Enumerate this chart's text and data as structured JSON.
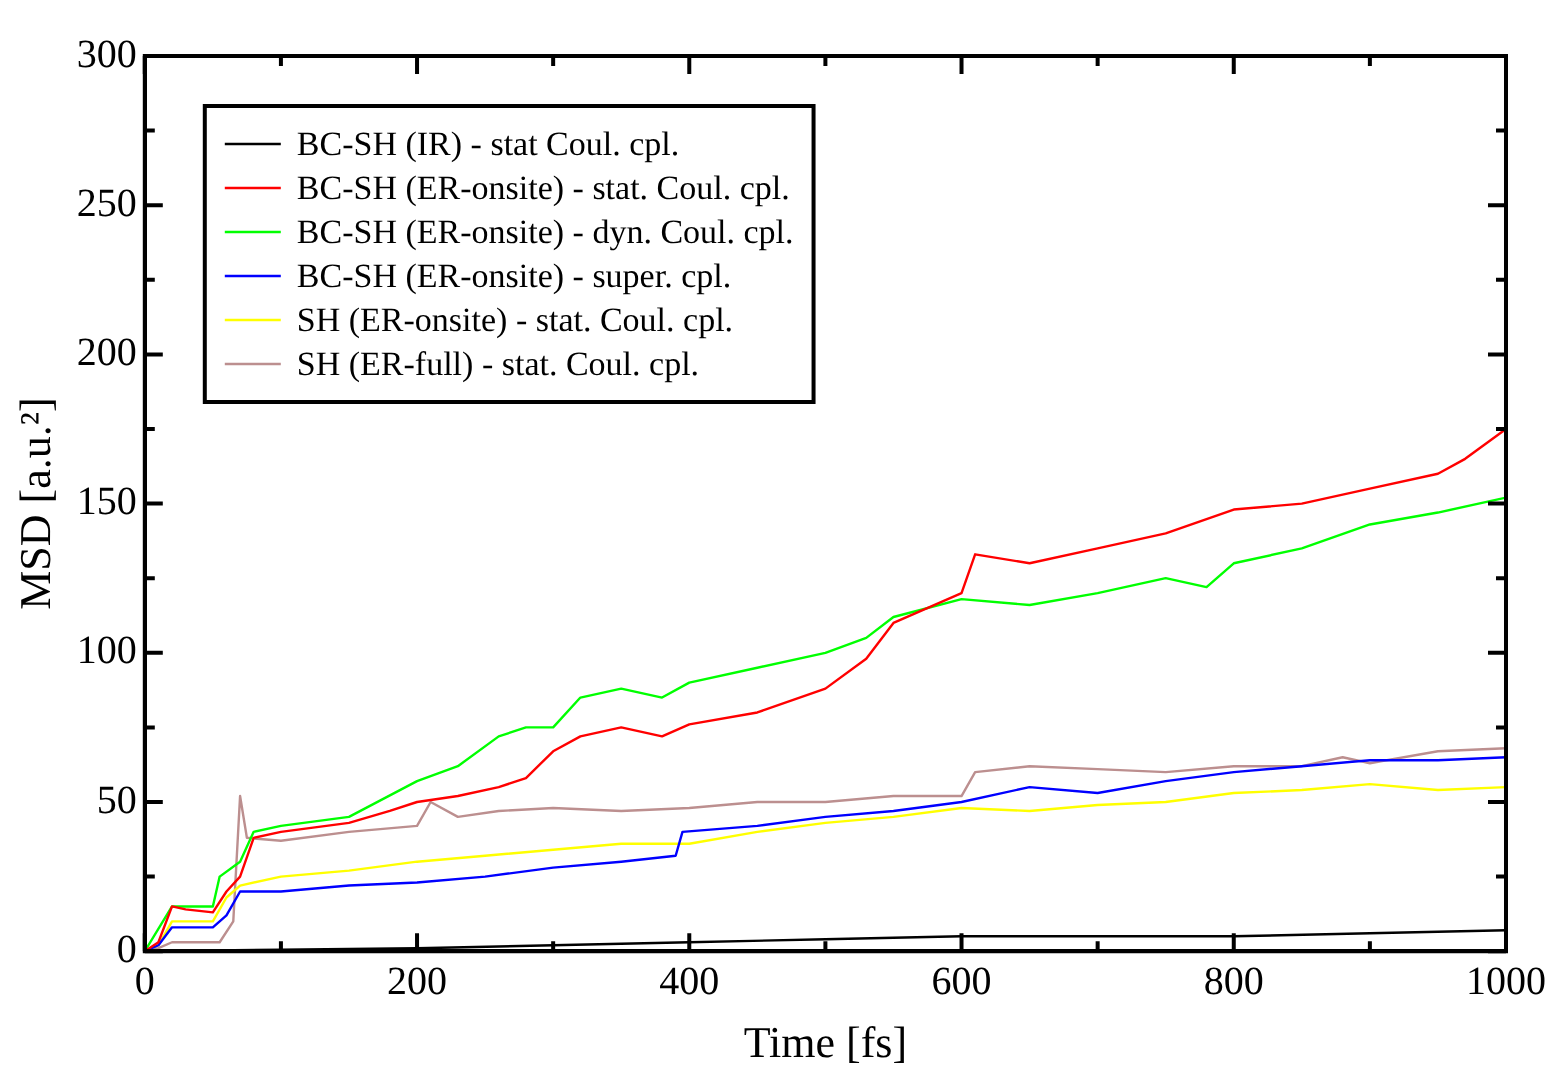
{
  "chart_data": {
    "type": "line",
    "xlabel": "Time [fs]",
    "ylabel": "MSD [a.u.²]",
    "xlim": [
      0,
      1000
    ],
    "ylim": [
      0,
      300
    ],
    "xticks": [
      0,
      {
        "value": 100,
        "label": null
      },
      200,
      {
        "value": 300,
        "label": null
      },
      400,
      {
        "value": 500,
        "label": null
      },
      600,
      {
        "value": 700,
        "label": null
      },
      800,
      {
        "value": 900,
        "label": null
      },
      1000
    ],
    "yticks": [
      0,
      {
        "value": 25,
        "label": null
      },
      50,
      {
        "value": 75,
        "label": null
      },
      100,
      {
        "value": 125,
        "label": null
      },
      150,
      {
        "value": 175,
        "label": null
      },
      200,
      {
        "value": 225,
        "label": null
      },
      250,
      {
        "value": 275,
        "label": null
      },
      300
    ],
    "grid": false,
    "legend": "top left",
    "marker": "none",
    "line_style": "solid",
    "series": [
      {
        "name": "BC-SH (IR) - stat Coul. cpl.",
        "color": "#000000",
        "x": [
          0,
          100,
          200,
          300,
          400,
          500,
          600,
          700,
          800,
          900,
          1000
        ],
        "values": [
          0,
          0.5,
          1,
          2,
          3,
          4,
          5,
          5,
          5,
          6,
          7
        ]
      },
      {
        "name": "BC-SH (ER-onsite) - stat. Coul. cpl.",
        "color": "#ff0000",
        "x": [
          0,
          10,
          20,
          30,
          50,
          60,
          70,
          80,
          100,
          150,
          180,
          200,
          230,
          260,
          280,
          300,
          320,
          350,
          380,
          400,
          450,
          500,
          530,
          550,
          600,
          610,
          650,
          700,
          750,
          800,
          850,
          900,
          950,
          970,
          1000
        ],
        "values": [
          0,
          3,
          15,
          14,
          13,
          20,
          25,
          38,
          40,
          43,
          47,
          50,
          52,
          55,
          58,
          67,
          72,
          75,
          72,
          76,
          80,
          88,
          98,
          110,
          120,
          133,
          130,
          135,
          140,
          148,
          150,
          155,
          160,
          165,
          175
        ]
      },
      {
        "name": "BC-SH (ER-onsite) - dyn. Coul. cpl.",
        "color": "#00ff00",
        "x": [
          0,
          20,
          50,
          55,
          70,
          80,
          100,
          150,
          200,
          230,
          260,
          280,
          300,
          320,
          350,
          380,
          400,
          450,
          500,
          530,
          550,
          600,
          650,
          700,
          750,
          780,
          800,
          850,
          900,
          950,
          1000
        ],
        "values": [
          0,
          15,
          15,
          25,
          30,
          40,
          42,
          45,
          57,
          62,
          72,
          75,
          75,
          85,
          88,
          85,
          90,
          95,
          100,
          105,
          112,
          118,
          116,
          120,
          125,
          122,
          130,
          135,
          143,
          147,
          152
        ]
      },
      {
        "name": "BC-SH (ER-onsite) - super. cpl.",
        "color": "#0000ff",
        "x": [
          0,
          10,
          20,
          50,
          60,
          70,
          100,
          150,
          200,
          250,
          300,
          350,
          390,
          395,
          450,
          500,
          550,
          600,
          650,
          700,
          750,
          800,
          850,
          900,
          950,
          1000
        ],
        "values": [
          0,
          2,
          8,
          8,
          12,
          20,
          20,
          22,
          23,
          25,
          28,
          30,
          32,
          40,
          42,
          45,
          47,
          50,
          55,
          53,
          57,
          60,
          62,
          64,
          64,
          65
        ]
      },
      {
        "name": "SH (ER-onsite) - stat. Coul. cpl.",
        "color": "#ffff00",
        "x": [
          0,
          10,
          20,
          50,
          60,
          70,
          100,
          150,
          200,
          250,
          300,
          350,
          400,
          450,
          500,
          550,
          600,
          650,
          700,
          750,
          800,
          850,
          900,
          950,
          1000
        ],
        "values": [
          0,
          2,
          10,
          10,
          18,
          22,
          25,
          27,
          30,
          32,
          34,
          36,
          36,
          40,
          43,
          45,
          48,
          47,
          49,
          50,
          53,
          54,
          56,
          54,
          55
        ]
      },
      {
        "name": "SH (ER-full) - stat. Coul. cpl.",
        "color": "#bc8f8f",
        "x": [
          0,
          10,
          20,
          55,
          65,
          70,
          75,
          100,
          150,
          200,
          210,
          230,
          260,
          300,
          350,
          400,
          450,
          500,
          550,
          600,
          610,
          650,
          700,
          750,
          800,
          850,
          880,
          900,
          950,
          1000
        ],
        "values": [
          0,
          1,
          3,
          3,
          10,
          52,
          38,
          37,
          40,
          42,
          50,
          45,
          47,
          48,
          47,
          48,
          50,
          50,
          52,
          52,
          60,
          62,
          61,
          60,
          62,
          62,
          65,
          63,
          67,
          68
        ]
      }
    ]
  }
}
